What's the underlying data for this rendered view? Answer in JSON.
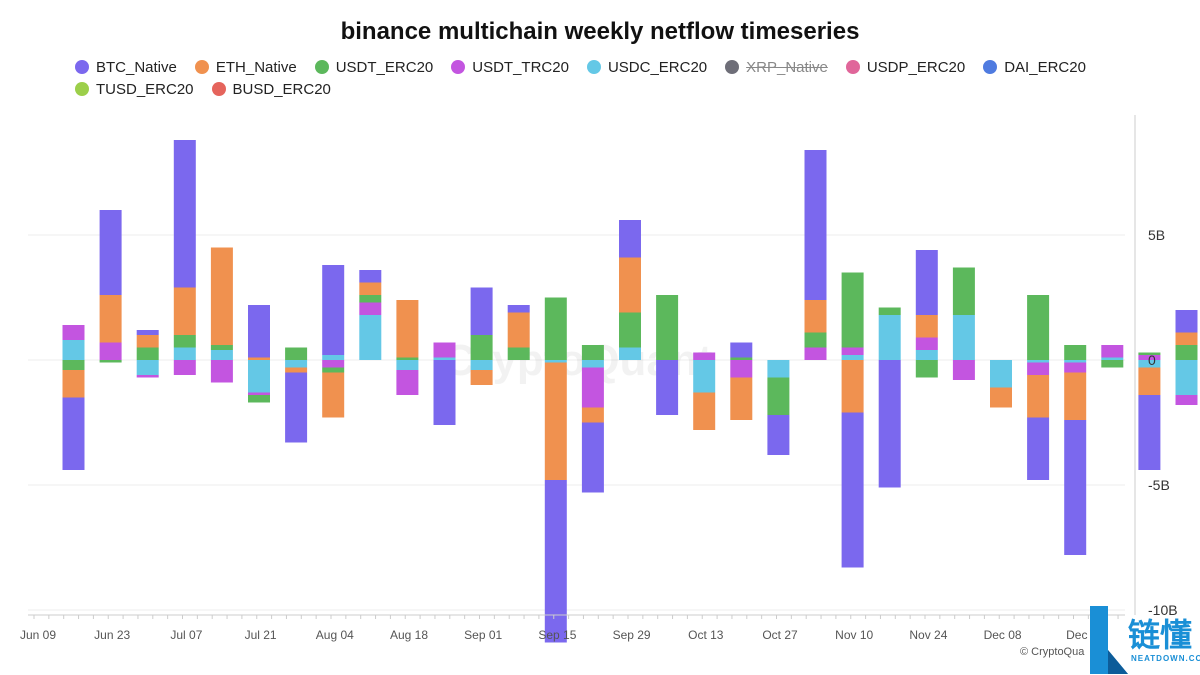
{
  "chart_data": {
    "type": "bar",
    "stacked": true,
    "title": "binance multichain weekly netflow timeseries",
    "y_tick_labels": [
      "5B",
      "0",
      "-5B",
      "-10B"
    ],
    "y_ticks": [
      5,
      0,
      -5,
      -10
    ],
    "ylim": [
      -10.2,
      9.8
    ],
    "x_tick_labels": [
      "Jun 09",
      "Jun 23",
      "Jul 07",
      "Jul 21",
      "Aug 04",
      "Aug 18",
      "Sep 01",
      "Sep 15",
      "Sep 29",
      "Oct 13",
      "Oct 27",
      "Nov 10",
      "Nov 24",
      "Dec 08",
      "Dec"
    ],
    "legend_position": "top",
    "watermark": "CryptoQuant",
    "credit": "© CryptoQua",
    "series": [
      {
        "name": "BTC_Native",
        "color": "#7b68ee",
        "hidden": false,
        "values": [
          -2.9,
          3.4,
          0.2,
          5.9,
          0.0,
          2.1,
          -2.8,
          3.6,
          0.5,
          0,
          -2.6,
          1.9,
          0.3,
          -6.5,
          -2.8,
          1.5,
          -2.2,
          0,
          0.6,
          -1.6,
          6.0,
          -6.2,
          -5.1,
          2.6,
          0,
          0,
          -2.5,
          -5.4,
          0,
          -3.0,
          0.9,
          4.7,
          0.0,
          0.6,
          -0.5,
          1.3
        ]
      },
      {
        "name": "ETH_Native",
        "color": "#f0914f",
        "hidden": false,
        "values": [
          -1.1,
          1.9,
          0.5,
          1.9,
          3.9,
          0.1,
          -0.2,
          -1.8,
          0.5,
          2.3,
          0,
          -0.6,
          1.4,
          -4.7,
          -0.6,
          2.2,
          0,
          -1.5,
          -1.7,
          0,
          1.3,
          -2.1,
          0,
          0.9,
          0,
          -0.8,
          -1.7,
          -1.9,
          0,
          -1.1,
          0.5,
          0.5,
          0,
          -0.3,
          0.3,
          1.0
        ]
      },
      {
        "name": "USDT_ERC20",
        "color": "#5cb85c",
        "hidden": false,
        "values": [
          -0.4,
          -0.1,
          0.5,
          0.5,
          0.2,
          -0.3,
          0.5,
          -0.2,
          0.3,
          0.1,
          0,
          1.0,
          0.5,
          2.5,
          0.6,
          1.4,
          2.6,
          0,
          0.1,
          -1.5,
          0.6,
          3.0,
          0.3,
          -0.7,
          1.9,
          0,
          2.6,
          0.6,
          -0.3,
          0.1,
          0.6,
          -0.7,
          -0.3,
          0.4,
          0.3,
          0.6
        ]
      },
      {
        "name": "USDT_TRC20",
        "color": "#c355e0",
        "hidden": false,
        "values": [
          0.6,
          0.7,
          -0.1,
          -0.6,
          -0.9,
          -0.1,
          0.0,
          -0.3,
          0.5,
          -1.0,
          0.6,
          0,
          0,
          0,
          -1.6,
          0,
          0,
          0.3,
          -0.7,
          0,
          0.5,
          0.3,
          0,
          0.5,
          -0.8,
          0,
          -0.5,
          -0.4,
          0.5,
          0.2,
          -0.4,
          0.6,
          -0.6,
          -0.7,
          -0.6,
          0.4
        ]
      },
      {
        "name": "USDC_ERC20",
        "color": "#64c8e6",
        "hidden": false,
        "values": [
          0.8,
          0.0,
          -0.6,
          0.5,
          0.4,
          -1.3,
          -0.3,
          0.2,
          1.8,
          -0.4,
          0.1,
          -0.4,
          0,
          -0.1,
          -0.3,
          0.5,
          0,
          -1.3,
          0,
          -0.7,
          0,
          0.2,
          1.8,
          0.4,
          1.8,
          -1.1,
          -0.1,
          -0.1,
          0.1,
          -0.3,
          -1.4,
          -0.6,
          -0.2,
          0,
          -0.3,
          0
        ]
      },
      {
        "name": "XRP_Native",
        "color": "#6e6e78",
        "hidden": true,
        "values": []
      },
      {
        "name": "USDP_ERC20",
        "color": "#e0669a",
        "hidden": false,
        "values": []
      },
      {
        "name": "DAI_ERC20",
        "color": "#4f7be0",
        "hidden": false,
        "values": []
      },
      {
        "name": "TUSD_ERC20",
        "color": "#9ccf4a",
        "hidden": false,
        "values": []
      },
      {
        "name": "BUSD_ERC20",
        "color": "#e5645c",
        "hidden": false,
        "values": []
      }
    ]
  }
}
